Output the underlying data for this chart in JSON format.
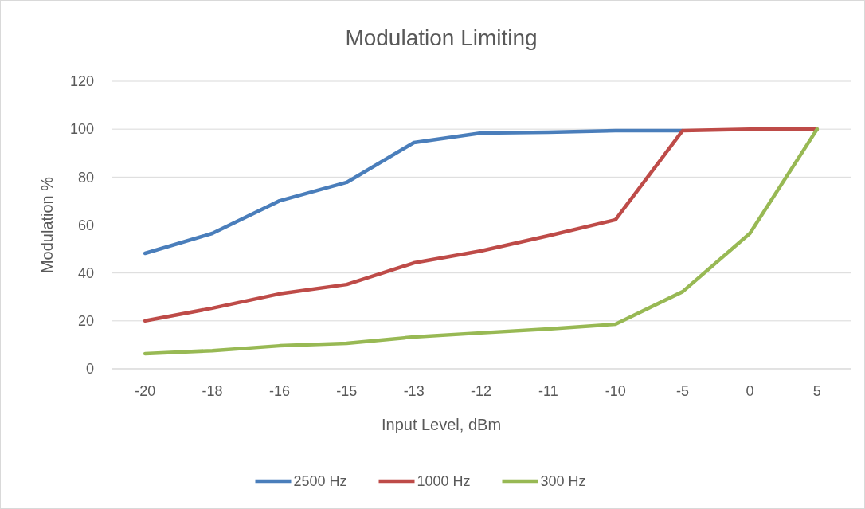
{
  "chart_data": {
    "type": "line",
    "title": "Modulation Limiting",
    "xlabel": "Input Level, dBm",
    "ylabel": "Modulation %",
    "categories": [
      "-20",
      "-18",
      "-16",
      "-15",
      "-13",
      "-12",
      "-11",
      "-10",
      "-5",
      "0",
      "5"
    ],
    "series": [
      {
        "name": "2500 Hz",
        "color": "#4a7ebb",
        "values": [
          48.2,
          56.5,
          70.1,
          77.8,
          94.4,
          98.4,
          98.7,
          99.4,
          99.4,
          null,
          null
        ]
      },
      {
        "name": "1000 Hz",
        "color": "#be4b48",
        "values": [
          20,
          25.3,
          31.3,
          35.2,
          44.2,
          49.2,
          55.5,
          62.2,
          99.4,
          100,
          100
        ]
      },
      {
        "name": "300 Hz",
        "color": "#98b954",
        "values": [
          6.3,
          7.6,
          9.6,
          10.6,
          13.3,
          15,
          16.6,
          18.6,
          32.2,
          56.5,
          100
        ]
      }
    ],
    "ylim": [
      0,
      120
    ],
    "yticks": [
      0,
      20,
      40,
      60,
      80,
      100,
      120
    ],
    "grid": "y",
    "legend": "bottom",
    "marker": "none",
    "line_style": "solid"
  }
}
